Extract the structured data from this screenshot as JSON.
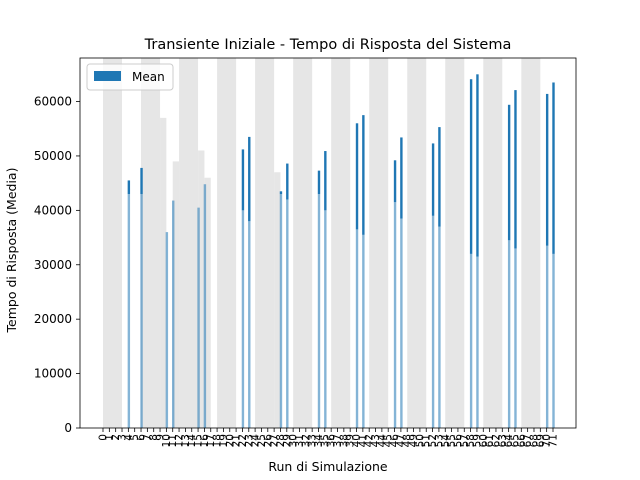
{
  "chart_data": {
    "type": "bar",
    "title": "Transiente Iniziale - Tempo di Risposta del Sistema",
    "xlabel": "Run di Simulazione",
    "ylabel": "Tempo di Risposta (Media)",
    "ylim": [
      0,
      68000
    ],
    "yticks": [
      0,
      10000,
      20000,
      30000,
      40000,
      50000,
      60000
    ],
    "ytick_labels": [
      "0",
      "10000",
      "20000",
      "30000",
      "40000",
      "50000",
      "60000"
    ],
    "grid": false,
    "legend": {
      "position": "top-left",
      "entries": [
        "Mean"
      ]
    },
    "categories": [
      0,
      1,
      2,
      3,
      4,
      5,
      6,
      7,
      8,
      9,
      10,
      11,
      12,
      13,
      14,
      15,
      16,
      17,
      18,
      19,
      20,
      21,
      22,
      23,
      24,
      25,
      26,
      27,
      28,
      29,
      30,
      31,
      32,
      33,
      34,
      35,
      36,
      37,
      38,
      39,
      40,
      41,
      42,
      43,
      44,
      45,
      46,
      47,
      48,
      49,
      50,
      51,
      52,
      53,
      54,
      55,
      56,
      57,
      58,
      59,
      60,
      61,
      62,
      63,
      64,
      65,
      66,
      67,
      68,
      69,
      70,
      71
    ],
    "series": [
      {
        "name": "Mean",
        "color": "#1f77b4",
        "values": [
          null,
          null,
          null,
          null,
          45500,
          null,
          47800,
          null,
          null,
          null,
          36000,
          41800,
          null,
          null,
          null,
          40500,
          44800,
          null,
          null,
          null,
          null,
          null,
          51200,
          53500,
          null,
          null,
          null,
          null,
          43500,
          48600,
          null,
          null,
          null,
          null,
          47300,
          50900,
          null,
          null,
          null,
          null,
          56000,
          57500,
          null,
          null,
          null,
          null,
          49200,
          53400,
          null,
          null,
          null,
          null,
          52300,
          55300,
          null,
          null,
          null,
          null,
          64100,
          65000,
          null,
          null,
          null,
          null,
          59400,
          62100,
          null,
          null,
          null,
          null,
          61400,
          63500
        ],
        "lower": [
          null,
          null,
          null,
          null,
          43000,
          null,
          43000,
          null,
          null,
          null,
          36000,
          41800,
          null,
          null,
          null,
          40500,
          44800,
          null,
          null,
          null,
          null,
          null,
          40000,
          38000,
          null,
          null,
          null,
          null,
          43000,
          42000,
          null,
          null,
          null,
          null,
          43000,
          40000,
          null,
          null,
          null,
          null,
          36500,
          35500,
          null,
          null,
          null,
          null,
          41500,
          38500,
          null,
          null,
          null,
          null,
          39000,
          37000,
          null,
          null,
          null,
          null,
          32000,
          31500,
          null,
          null,
          null,
          null,
          34500,
          33000,
          null,
          null,
          null,
          null,
          33500,
          32000
        ]
      }
    ],
    "background_bands": [
      {
        "from": 0,
        "to": 3,
        "value": 68000
      },
      {
        "from": 6,
        "to": 9,
        "value": 68000
      },
      {
        "from": 9,
        "to": 10,
        "value": 57000
      },
      {
        "from": 11,
        "to": 12,
        "value": 49000
      },
      {
        "from": 12,
        "to": 15,
        "value": 68000
      },
      {
        "from": 15,
        "to": 16,
        "value": 51000
      },
      {
        "from": 16,
        "to": 17,
        "value": 46000
      },
      {
        "from": 18,
        "to": 21,
        "value": 68000
      },
      {
        "from": 24,
        "to": 27,
        "value": 68000
      },
      {
        "from": 27,
        "to": 28,
        "value": 47000
      },
      {
        "from": 30,
        "to": 33,
        "value": 68000
      },
      {
        "from": 36,
        "to": 39,
        "value": 68000
      },
      {
        "from": 42,
        "to": 45,
        "value": 68000
      },
      {
        "from": 48,
        "to": 51,
        "value": 68000
      },
      {
        "from": 54,
        "to": 57,
        "value": 68000
      },
      {
        "from": 60,
        "to": 63,
        "value": 68000
      },
      {
        "from": 66,
        "to": 69,
        "value": 68000
      }
    ],
    "background_color": "#e6e6e6"
  }
}
